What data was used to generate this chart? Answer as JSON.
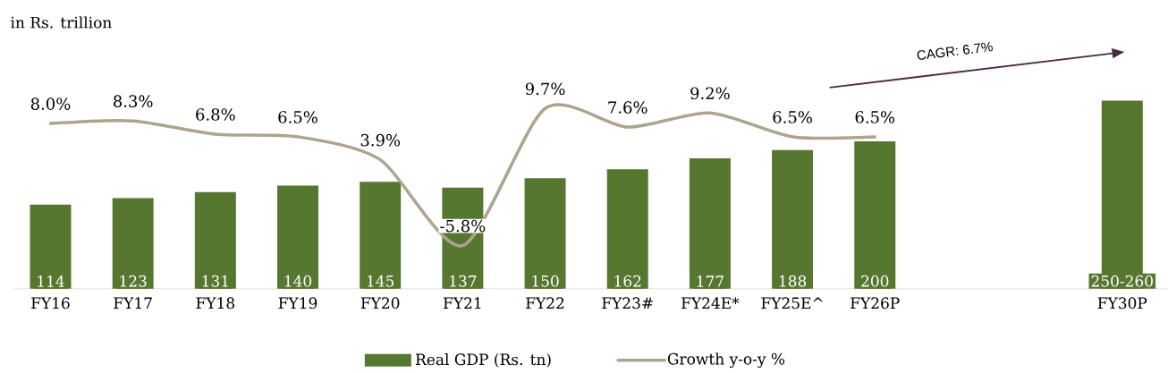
{
  "chart_data": {
    "type": "bar",
    "ylabel": "in Rs. trillion",
    "legend": "bottom",
    "categories": [
      "FY16",
      "FY17",
      "FY18",
      "FY19",
      "FY20",
      "FY21",
      "FY22",
      "FY23#",
      "FY24E*",
      "FY25E^",
      "FY26P",
      null,
      null,
      "FY30P"
    ],
    "series": [
      {
        "name": "Real GDP (Rs. tn)",
        "color": "#56772f",
        "values": [
          114,
          123,
          131,
          140,
          145,
          137,
          150,
          162,
          177,
          188,
          200,
          null,
          null,
          255
        ],
        "value_labels": [
          "114",
          "123",
          "131",
          "140",
          "145",
          "137",
          "150",
          "162",
          "177",
          "188",
          "200",
          null,
          null,
          "250-260"
        ]
      },
      {
        "name": "Growth y-o-y %",
        "type": "line",
        "axis": "y2",
        "color": "#aea48e",
        "values": [
          8.0,
          8.3,
          6.8,
          6.5,
          3.9,
          -5.8,
          9.7,
          7.6,
          9.2,
          6.5,
          6.5,
          null,
          null,
          null
        ],
        "value_labels": [
          "8.0%",
          "8.3%",
          "6.8%",
          "6.5%",
          "3.9%",
          "-5.8%",
          "9.7%",
          "7.6%",
          "9.2%",
          "6.5%",
          "6.5%",
          null,
          null,
          null
        ]
      }
    ],
    "annotations": [
      "CAGR: 6.7%"
    ]
  }
}
